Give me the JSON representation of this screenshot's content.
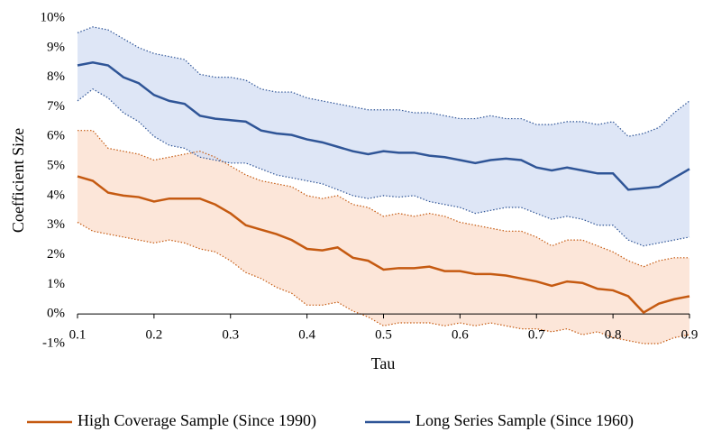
{
  "chart_data": {
    "type": "line-band",
    "x_label": "Tau",
    "y_label": "Coefficient Size",
    "x": [
      0.1,
      0.12,
      0.14,
      0.16,
      0.18,
      0.2,
      0.22,
      0.24,
      0.26,
      0.28,
      0.3,
      0.32,
      0.34,
      0.36,
      0.38,
      0.4,
      0.42,
      0.44,
      0.46,
      0.48,
      0.5,
      0.52,
      0.54,
      0.56,
      0.58,
      0.6,
      0.62,
      0.64,
      0.66,
      0.68,
      0.7,
      0.72,
      0.74,
      0.76,
      0.78,
      0.8,
      0.82,
      0.84,
      0.86,
      0.88,
      0.9
    ],
    "xlim": [
      0.1,
      0.9
    ],
    "xticks": [
      0.1,
      0.2,
      0.3,
      0.4,
      0.5,
      0.6,
      0.7,
      0.8,
      0.9
    ],
    "ylim": [
      -1,
      10
    ],
    "yticks": [
      {
        "value": -1,
        "label": "-1%"
      },
      {
        "value": 0,
        "label": "0%"
      },
      {
        "value": 1,
        "label": "1%"
      },
      {
        "value": 2,
        "label": "2%"
      },
      {
        "value": 3,
        "label": "3%"
      },
      {
        "value": 4,
        "label": "4%"
      },
      {
        "value": 5,
        "label": "5%"
      },
      {
        "value": 6,
        "label": "6%"
      },
      {
        "value": 7,
        "label": "7%"
      },
      {
        "value": 8,
        "label": "8%"
      },
      {
        "value": 9,
        "label": "9%"
      },
      {
        "value": 10,
        "label": "10%"
      }
    ],
    "grid": false,
    "legend": "bottom",
    "series": [
      {
        "name": "High Coverage Sample (Since 1990)",
        "color": "#c55a11",
        "band_color": "#fbe0d0",
        "values": [
          4.65,
          4.5,
          4.1,
          4.0,
          3.95,
          3.8,
          3.9,
          3.9,
          3.9,
          3.7,
          3.4,
          3.0,
          2.85,
          2.7,
          2.5,
          2.2,
          2.15,
          2.25,
          1.9,
          1.8,
          1.5,
          1.55,
          1.55,
          1.6,
          1.45,
          1.45,
          1.35,
          1.35,
          1.3,
          1.2,
          1.1,
          0.95,
          1.1,
          1.05,
          0.85,
          0.8,
          0.6,
          0.05,
          0.35,
          0.5,
          0.6
        ],
        "upper": [
          6.2,
          6.2,
          5.6,
          5.5,
          5.4,
          5.2,
          5.3,
          5.4,
          5.5,
          5.3,
          5.0,
          4.7,
          4.5,
          4.4,
          4.3,
          4.0,
          3.9,
          4.0,
          3.7,
          3.6,
          3.3,
          3.4,
          3.3,
          3.4,
          3.3,
          3.1,
          3.0,
          2.9,
          2.8,
          2.8,
          2.6,
          2.3,
          2.5,
          2.5,
          2.3,
          2.1,
          1.8,
          1.6,
          1.8,
          1.9,
          1.9
        ],
        "lower": [
          3.1,
          2.8,
          2.7,
          2.6,
          2.5,
          2.4,
          2.5,
          2.4,
          2.2,
          2.1,
          1.8,
          1.4,
          1.2,
          0.9,
          0.7,
          0.3,
          0.3,
          0.4,
          0.1,
          -0.1,
          -0.4,
          -0.3,
          -0.3,
          -0.3,
          -0.4,
          -0.3,
          -0.4,
          -0.3,
          -0.4,
          -0.5,
          -0.5,
          -0.6,
          -0.5,
          -0.7,
          -0.6,
          -0.8,
          -0.9,
          -1.0,
          -1.0,
          -0.8,
          -0.7
        ]
      },
      {
        "name": "Long Series Sample (Since 1960)",
        "color": "#2f5597",
        "band_color": "#d6e0f4",
        "values": [
          8.4,
          8.5,
          8.4,
          8.0,
          7.8,
          7.4,
          7.2,
          7.1,
          6.7,
          6.6,
          6.55,
          6.5,
          6.2,
          6.1,
          6.05,
          5.9,
          5.8,
          5.65,
          5.5,
          5.4,
          5.5,
          5.45,
          5.45,
          5.35,
          5.3,
          5.2,
          5.1,
          5.2,
          5.25,
          5.2,
          4.95,
          4.85,
          4.95,
          4.85,
          4.75,
          4.75,
          4.2,
          4.25,
          4.3,
          4.6,
          4.9
        ],
        "upper": [
          9.5,
          9.7,
          9.6,
          9.3,
          9.0,
          8.8,
          8.7,
          8.6,
          8.1,
          8.0,
          8.0,
          7.9,
          7.6,
          7.5,
          7.5,
          7.3,
          7.2,
          7.1,
          7.0,
          6.9,
          6.9,
          6.9,
          6.8,
          6.8,
          6.7,
          6.6,
          6.6,
          6.7,
          6.6,
          6.6,
          6.4,
          6.4,
          6.5,
          6.5,
          6.4,
          6.5,
          6.0,
          6.1,
          6.3,
          6.8,
          7.2
        ],
        "lower": [
          7.2,
          7.6,
          7.3,
          6.8,
          6.5,
          6.0,
          5.7,
          5.6,
          5.3,
          5.2,
          5.1,
          5.1,
          4.9,
          4.7,
          4.6,
          4.5,
          4.4,
          4.2,
          4.0,
          3.9,
          4.0,
          3.95,
          4.0,
          3.8,
          3.7,
          3.6,
          3.4,
          3.5,
          3.6,
          3.6,
          3.4,
          3.2,
          3.3,
          3.2,
          3.0,
          3.0,
          2.5,
          2.3,
          2.4,
          2.5,
          2.6
        ]
      }
    ]
  }
}
